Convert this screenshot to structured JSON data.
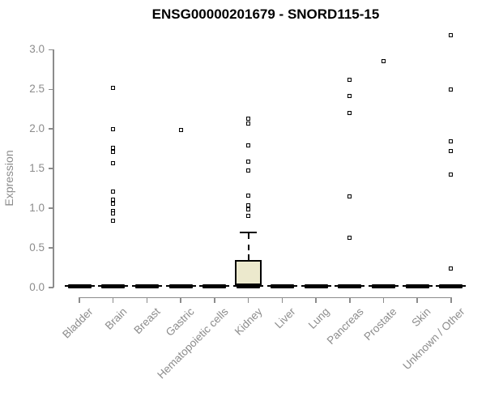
{
  "title": "ENSG00000201679 - SNORD115-15",
  "y_axis": {
    "label": "Expression",
    "tick_labels": [
      "0.0",
      "0.5",
      "1.0",
      "1.5",
      "2.0",
      "2.5",
      "3.0"
    ],
    "tick_values": [
      0,
      0.5,
      1.0,
      1.5,
      2.0,
      2.5,
      3.0
    ]
  },
  "colors": {
    "axis": "#8c8c8c",
    "axis_text": "#8c8c8c",
    "title_text": "#000000",
    "box_fill": "#ece9cd",
    "box_border": "#000000",
    "outlier": "#000000"
  },
  "chart_data": {
    "type": "boxplot",
    "title": "ENSG00000201679 - SNORD115-15",
    "xlabel": "",
    "ylabel": "Expression",
    "ylim": [
      0,
      3.25
    ],
    "grid": false,
    "legend": false,
    "categories": [
      "Bladder",
      "Brain",
      "Breast",
      "Gastric",
      "Hematopoietic cells",
      "Kidney",
      "Liver",
      "Lung",
      "Pancreas",
      "Prostate",
      "Skin",
      "Unknown / Other"
    ],
    "series": [
      {
        "name": "Bladder",
        "median": 0,
        "q1": 0,
        "q3": 0,
        "whisker_low": 0,
        "whisker_high": 0,
        "outliers": []
      },
      {
        "name": "Brain",
        "median": 0,
        "q1": 0,
        "q3": 0,
        "whisker_low": 0,
        "whisker_high": 0,
        "outliers": [
          2.52,
          2.0,
          1.76,
          1.71,
          1.57,
          1.21,
          1.11,
          1.06,
          0.97,
          0.93,
          0.84
        ]
      },
      {
        "name": "Breast",
        "median": 0,
        "q1": 0,
        "q3": 0,
        "whisker_low": 0,
        "whisker_high": 0,
        "outliers": []
      },
      {
        "name": "Gastric",
        "median": 0,
        "q1": 0,
        "q3": 0,
        "whisker_low": 0,
        "whisker_high": 0,
        "outliers": [
          1.99
        ]
      },
      {
        "name": "Hematopoietic cells",
        "median": 0,
        "q1": 0,
        "q3": 0,
        "whisker_low": 0,
        "whisker_high": 0,
        "outliers": []
      },
      {
        "name": "Kidney",
        "median": 0.01,
        "q1": 0.02,
        "q3": 0.35,
        "whisker_low": 0,
        "whisker_high": 0.69,
        "outliers": [
          2.13,
          2.07,
          1.79,
          1.59,
          1.48,
          1.16,
          1.04,
          0.99,
          0.9
        ]
      },
      {
        "name": "Liver",
        "median": 0,
        "q1": 0,
        "q3": 0,
        "whisker_low": 0,
        "whisker_high": 0,
        "outliers": []
      },
      {
        "name": "Lung",
        "median": 0,
        "q1": 0,
        "q3": 0,
        "whisker_low": 0,
        "whisker_high": 0,
        "outliers": []
      },
      {
        "name": "Pancreas",
        "median": 0,
        "q1": 0,
        "q3": 0,
        "whisker_low": 0,
        "whisker_high": 0,
        "outliers": [
          2.62,
          2.42,
          2.2,
          1.15,
          0.63
        ]
      },
      {
        "name": "Prostate",
        "median": 0,
        "q1": 0,
        "q3": 0,
        "whisker_low": 0,
        "whisker_high": 0,
        "outliers": [
          2.85
        ]
      },
      {
        "name": "Skin",
        "median": 0,
        "q1": 0,
        "q3": 0,
        "whisker_low": 0,
        "whisker_high": 0,
        "outliers": []
      },
      {
        "name": "Unknown / Other",
        "median": 0,
        "q1": 0,
        "q3": 0,
        "whisker_low": 0,
        "whisker_high": 0,
        "outliers": [
          3.18,
          2.5,
          1.84,
          1.72,
          1.43,
          0.24
        ]
      }
    ]
  }
}
